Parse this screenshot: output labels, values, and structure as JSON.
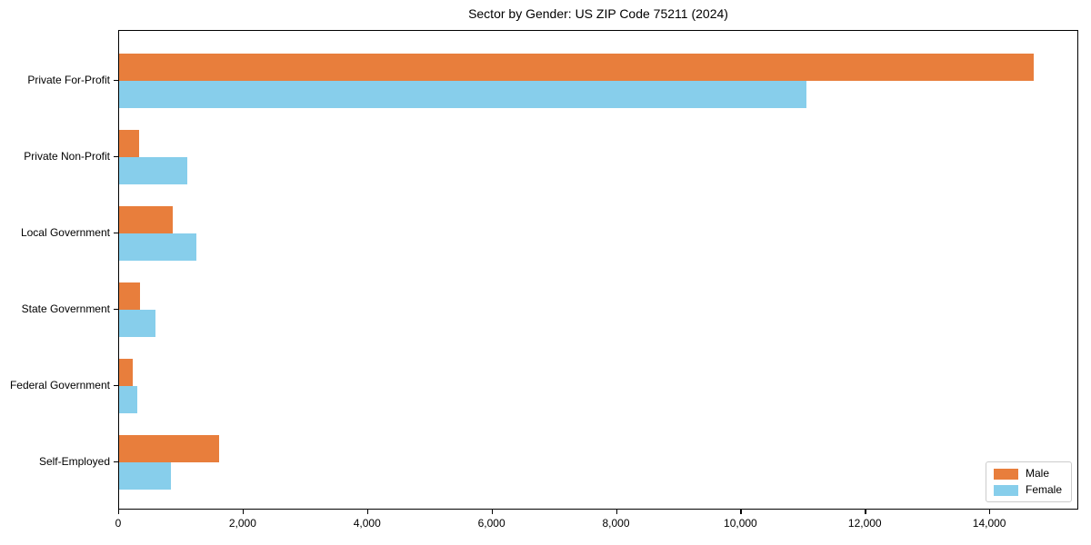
{
  "chart_data": {
    "type": "bar",
    "orientation": "horizontal",
    "title": "Sector by Gender: US ZIP Code 75211 (2024)",
    "categories": [
      "Private For-Profit",
      "Private Non-Profit",
      "Local Government",
      "State Government",
      "Federal Government",
      "Self-Employed"
    ],
    "series": [
      {
        "name": "Male",
        "color": "#e87e3c",
        "values": [
          14700,
          320,
          860,
          340,
          220,
          1600
        ]
      },
      {
        "name": "Female",
        "color": "#87ceeb",
        "values": [
          11050,
          1100,
          1240,
          580,
          290,
          830
        ]
      }
    ],
    "xlabel": "",
    "ylabel": "",
    "xlim": [
      0,
      15430
    ],
    "xticks": [
      0,
      2000,
      4000,
      6000,
      8000,
      10000,
      12000,
      14000
    ],
    "xtick_labels": [
      "0",
      "2,000",
      "4,000",
      "6,000",
      "8,000",
      "10,000",
      "12,000",
      "14,000"
    ],
    "grid": false,
    "legend_position": "lower right"
  }
}
